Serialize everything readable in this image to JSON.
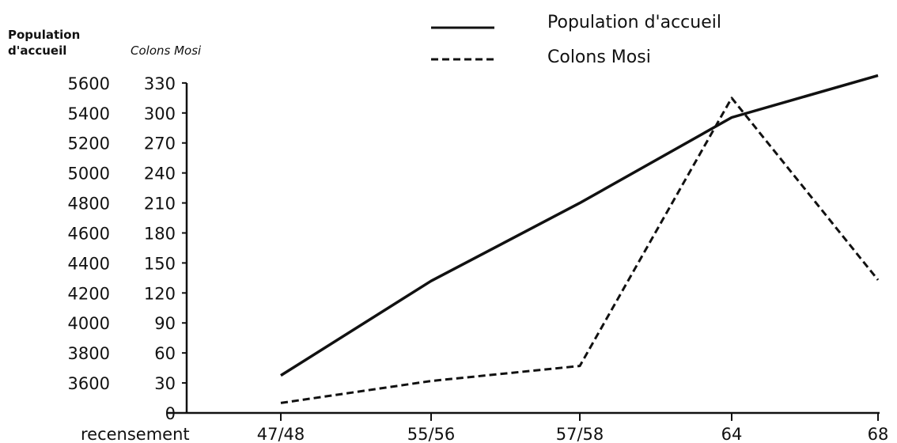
{
  "chart_data": {
    "type": "line",
    "title": "",
    "xlabel": "recensement",
    "categories": [
      "47/48",
      "55/56",
      "57/58",
      "64",
      "68"
    ],
    "y_left": {
      "label_line1": "Population",
      "label_line2": "d'accueil",
      "ticks": [
        3600,
        3800,
        4000,
        4200,
        4400,
        4600,
        4800,
        5000,
        5200,
        5400,
        5600
      ],
      "range": [
        3600,
        5600
      ]
    },
    "y_right": {
      "label": "Colons Mosi",
      "ticks": [
        0,
        30,
        60,
        90,
        120,
        150,
        180,
        210,
        240,
        270,
        300,
        330
      ],
      "range": [
        0,
        330
      ]
    },
    "series": [
      {
        "name": "Population d'accueil",
        "axis": "left",
        "style": "solid",
        "values": [
          3650,
          4280,
          4800,
          5370,
          5650
        ]
      },
      {
        "name": "Colons Mosi",
        "axis": "right",
        "style": "dashed",
        "values": [
          10,
          32,
          47,
          315,
          133
        ]
      }
    ],
    "legend_position": "top-right",
    "grid": false,
    "color": "#111111"
  }
}
